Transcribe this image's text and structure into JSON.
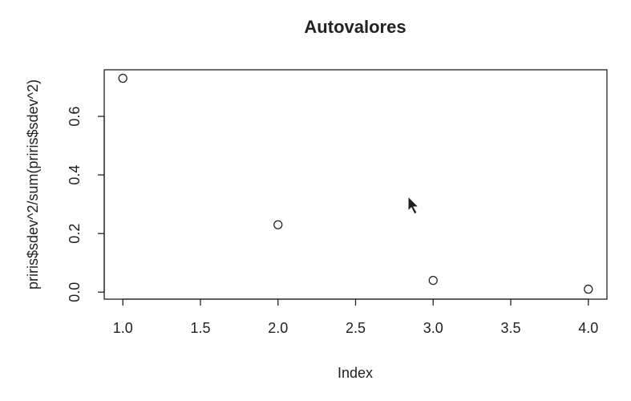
{
  "chart_data": {
    "type": "scatter",
    "title": "Autovalores",
    "x_label": "Index",
    "y_label": "priris$sdev^2/sum(priris$sdev^2)",
    "x": [
      1,
      2,
      3,
      4
    ],
    "values": [
      0.73,
      0.23,
      0.04,
      0.01
    ],
    "color": "#222222",
    "xlim": [
      0.88,
      4.12
    ],
    "ylim": [
      -0.024,
      0.759
    ],
    "xticks": [
      {
        "value": 1,
        "label": "1.0"
      },
      1.5,
      {
        "value": 2,
        "label": "2.0"
      },
      2.5,
      {
        "value": 3,
        "label": "3.0"
      },
      3.5,
      {
        "value": 4,
        "label": "4.0"
      }
    ],
    "yticks": [
      {
        "value": 0,
        "label": "0.0"
      },
      0.2,
      0.4,
      0.6
    ],
    "grid": false
  }
}
